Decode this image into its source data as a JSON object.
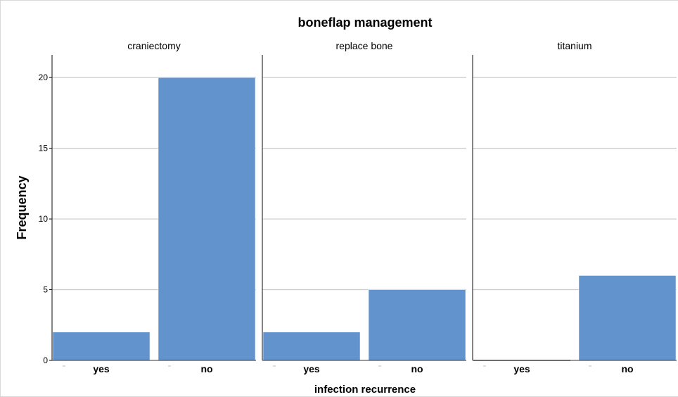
{
  "chart_data": {
    "type": "bar",
    "title": "boneflap management",
    "xlabel": "infection recurrence",
    "ylabel": "Frequency",
    "categories": [
      "yes",
      "no"
    ],
    "panels": [
      {
        "name": "craniectomy",
        "values": [
          2,
          20
        ]
      },
      {
        "name": "replace bone",
        "values": [
          2,
          5
        ]
      },
      {
        "name": "titanium",
        "values": [
          0,
          6
        ]
      }
    ],
    "ylim": [
      0,
      21.5
    ],
    "yticks": [
      0,
      5,
      10,
      15,
      20
    ],
    "grid": true,
    "bar_color": "#6393cc",
    "bar_edge_color": "#ffffff"
  }
}
